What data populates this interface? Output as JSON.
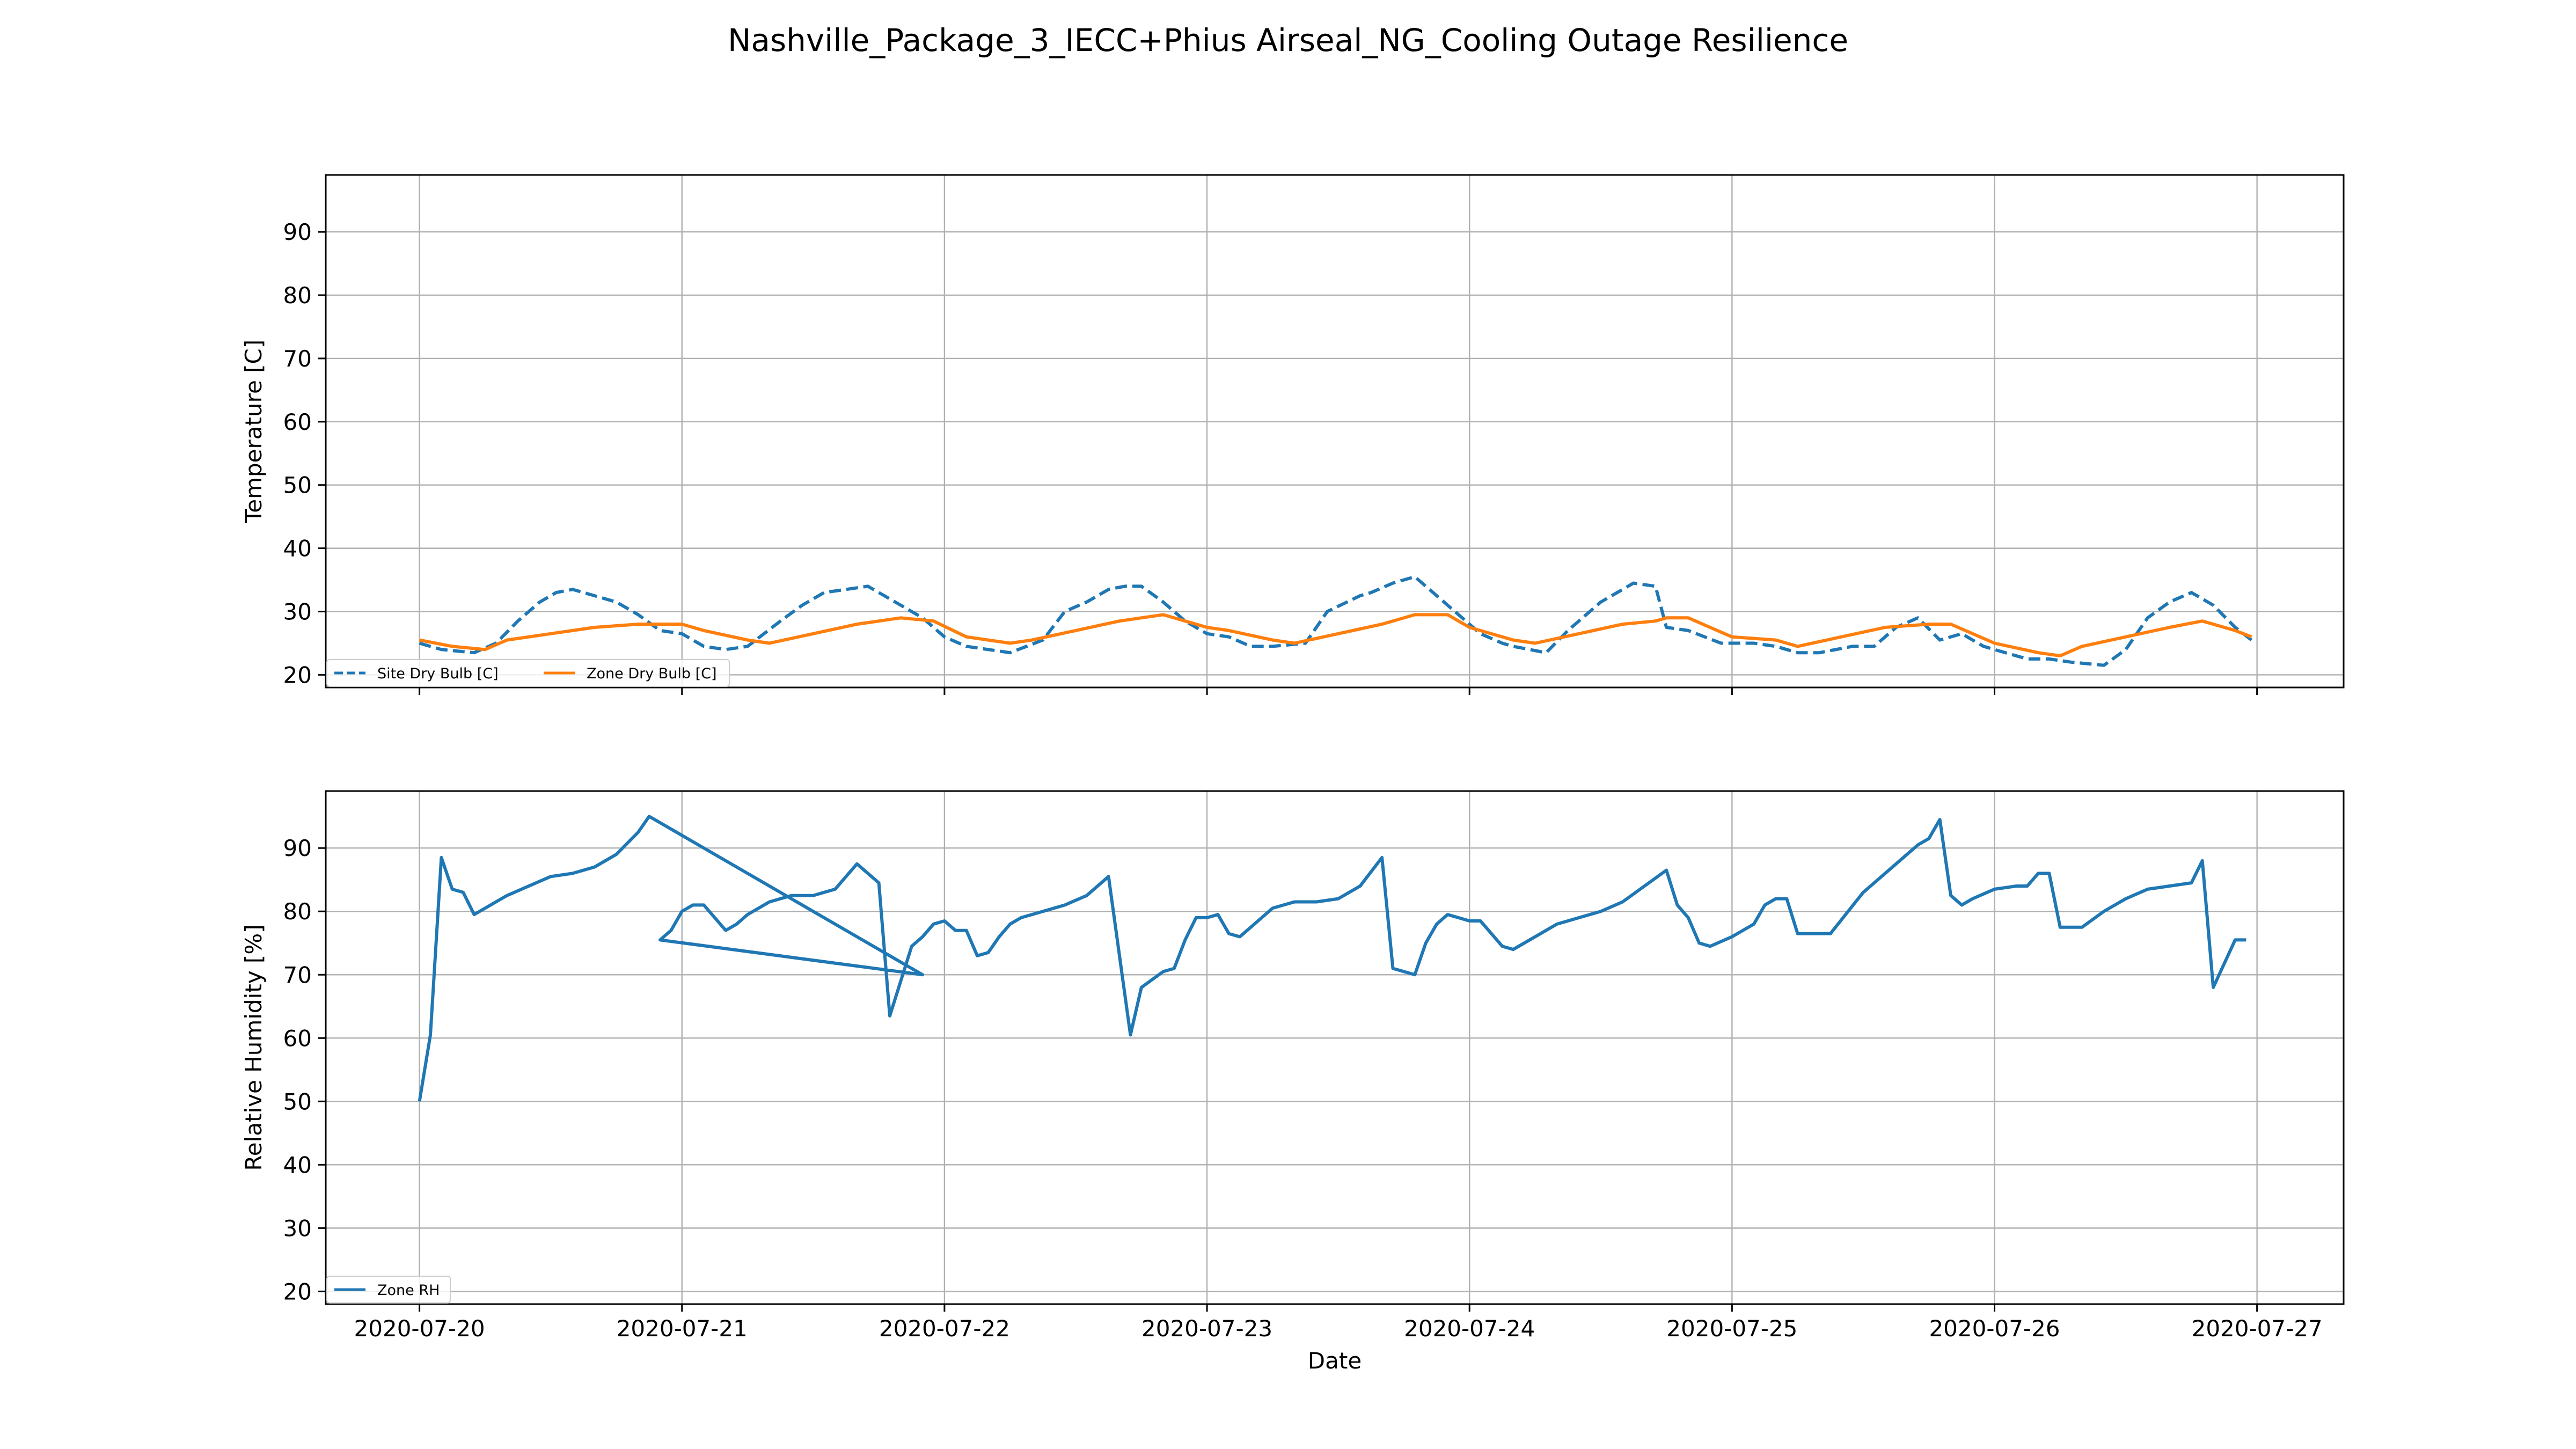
{
  "figure": {
    "title": "Nashville_Package_3_IECC+Phius Airseal_NG_Cooling Outage Resilience"
  },
  "chart_data": [
    {
      "type": "line",
      "ylabel": "Temperature [C]",
      "xlabel": "",
      "ylim": [
        18,
        99
      ],
      "yticks": [
        20,
        30,
        40,
        50,
        60,
        70,
        80,
        90
      ],
      "xlim": [
        "2020-07-19 15:26",
        "2020-07-27 07:55"
      ],
      "xticks": [
        "2020-07-20",
        "2020-07-21",
        "2020-07-22",
        "2020-07-23",
        "2020-07-24",
        "2020-07-25",
        "2020-07-26",
        "2020-07-27"
      ],
      "grid": true,
      "legend": {
        "position": "lower-left",
        "columns": 2
      },
      "series": [
        {
          "name": "Site Dry Bulb [C]",
          "color": "#1f77b4",
          "style": "dashed",
          "x": [
            "2020-07-20 00:00",
            "2020-07-20 02:00",
            "2020-07-20 05:00",
            "2020-07-20 07:00",
            "2020-07-20 09:00",
            "2020-07-20 11:00",
            "2020-07-20 12:30",
            "2020-07-20 14:00",
            "2020-07-20 16:00",
            "2020-07-20 18:00",
            "2020-07-20 20:00",
            "2020-07-20 22:00",
            "2020-07-21 00:00",
            "2020-07-21 02:00",
            "2020-07-21 04:00",
            "2020-07-21 06:00",
            "2020-07-21 09:00",
            "2020-07-21 11:00",
            "2020-07-21 13:00",
            "2020-07-21 15:00",
            "2020-07-21 17:00",
            "2020-07-21 20:00",
            "2020-07-21 22:00",
            "2020-07-22 00:00",
            "2020-07-22 02:00",
            "2020-07-22 04:00",
            "2020-07-22 06:00",
            "2020-07-22 09:00",
            "2020-07-22 11:00",
            "2020-07-22 13:00",
            "2020-07-22 15:00",
            "2020-07-22 16:30",
            "2020-07-22 18:00",
            "2020-07-22 20:00",
            "2020-07-22 22:00",
            "2020-07-23 00:00",
            "2020-07-23 02:00",
            "2020-07-23 04:00",
            "2020-07-23 06:00",
            "2020-07-23 09:00",
            "2020-07-23 11:00",
            "2020-07-23 14:00",
            "2020-07-23 15:00",
            "2020-07-23 17:00",
            "2020-07-23 19:00",
            "2020-07-23 21:00",
            "2020-07-23 23:00",
            "2020-07-24 01:00",
            "2020-07-24 03:00",
            "2020-07-24 04:00",
            "2020-07-24 07:00",
            "2020-07-24 09:00",
            "2020-07-24 12:00",
            "2020-07-24 14:00",
            "2020-07-24 15:00",
            "2020-07-24 17:00",
            "2020-07-24 18:00",
            "2020-07-24 20:00",
            "2020-07-24 23:00",
            "2020-07-25 02:00",
            "2020-07-25 04:00",
            "2020-07-25 06:00",
            "2020-07-25 08:00",
            "2020-07-25 11:00",
            "2020-07-25 13:00",
            "2020-07-25 15:00",
            "2020-07-25 17:00",
            "2020-07-25 19:00",
            "2020-07-25 21:00",
            "2020-07-25 23:00",
            "2020-07-26 01:00",
            "2020-07-26 03:00",
            "2020-07-26 05:00",
            "2020-07-26 07:00",
            "2020-07-26 10:00",
            "2020-07-26 12:00",
            "2020-07-26 14:00",
            "2020-07-26 16:00",
            "2020-07-26 18:00",
            "2020-07-26 20:00",
            "2020-07-26 22:00",
            "2020-07-26 23:30"
          ],
          "y": [
            25,
            24,
            23.5,
            25,
            28.5,
            31.5,
            33,
            33.5,
            32.5,
            31.5,
            29.5,
            27,
            26.5,
            24.5,
            24,
            24.5,
            28.5,
            31,
            33,
            33.5,
            34,
            31,
            29,
            26,
            24.5,
            24,
            23.5,
            25.5,
            30,
            31.5,
            33.5,
            34,
            34,
            31.5,
            28.5,
            26.5,
            26,
            24.5,
            24.5,
            25,
            30,
            32.5,
            33,
            34.5,
            35.5,
            32.5,
            29.5,
            26.5,
            25,
            24.5,
            23.5,
            27,
            31.5,
            33.5,
            34.5,
            34,
            27.5,
            27,
            25,
            25,
            24.5,
            23.5,
            23.5,
            24.5,
            24.5,
            27.5,
            29,
            25.5,
            26.5,
            24.5,
            23.5,
            22.5,
            22.5,
            22,
            21.5,
            24,
            29,
            31.5,
            33,
            31,
            27.5,
            25.5
          ]
        },
        {
          "name": "Zone Dry Bulb [C]",
          "color": "#ff7f0e",
          "style": "solid",
          "x": [
            "2020-07-20 00:00",
            "2020-07-20 03:00",
            "2020-07-20 06:00",
            "2020-07-20 08:00",
            "2020-07-20 12:00",
            "2020-07-20 16:00",
            "2020-07-20 20:00",
            "2020-07-21 00:00",
            "2020-07-21 02:00",
            "2020-07-21 06:00",
            "2020-07-21 08:00",
            "2020-07-21 12:00",
            "2020-07-21 16:00",
            "2020-07-21 20:00",
            "2020-07-21 23:00",
            "2020-07-22 02:00",
            "2020-07-22 06:00",
            "2020-07-22 08:00",
            "2020-07-22 12:00",
            "2020-07-22 16:00",
            "2020-07-22 20:00",
            "2020-07-23 00:00",
            "2020-07-23 02:00",
            "2020-07-23 06:00",
            "2020-07-23 08:00",
            "2020-07-23 12:00",
            "2020-07-23 16:00",
            "2020-07-23 19:00",
            "2020-07-23 22:00",
            "2020-07-24 00:00",
            "2020-07-24 04:00",
            "2020-07-24 06:00",
            "2020-07-24 10:00",
            "2020-07-24 14:00",
            "2020-07-24 17:00",
            "2020-07-24 18:00",
            "2020-07-24 20:00",
            "2020-07-25 00:00",
            "2020-07-25 04:00",
            "2020-07-25 06:00",
            "2020-07-25 10:00",
            "2020-07-25 14:00",
            "2020-07-25 18:00",
            "2020-07-25 20:00",
            "2020-07-26 00:00",
            "2020-07-26 04:00",
            "2020-07-26 06:00",
            "2020-07-26 08:00",
            "2020-07-26 12:00",
            "2020-07-26 16:00",
            "2020-07-26 19:00",
            "2020-07-26 22:00",
            "2020-07-26 23:30"
          ],
          "y": [
            25.5,
            24.5,
            24,
            25.5,
            26.5,
            27.5,
            28,
            28,
            27,
            25.5,
            25,
            26.5,
            28,
            29,
            28.5,
            26,
            25,
            25.5,
            27,
            28.5,
            29.5,
            27.5,
            27,
            25.5,
            25,
            26.5,
            28,
            29.5,
            29.5,
            27.5,
            25.5,
            25,
            26.5,
            28,
            28.5,
            29,
            29,
            26,
            25.5,
            24.5,
            26,
            27.5,
            28,
            28,
            25,
            23.5,
            23,
            24.5,
            26,
            27.5,
            28.5,
            27,
            26
          ]
        }
      ]
    },
    {
      "type": "line",
      "ylabel": "Relative Humidity [%]",
      "xlabel": "Date",
      "ylim": [
        18,
        99
      ],
      "yticks": [
        20,
        30,
        40,
        50,
        60,
        70,
        80,
        90
      ],
      "xlim": [
        "2020-07-19 15:26",
        "2020-07-27 07:55"
      ],
      "xticks": [
        "2020-07-20",
        "2020-07-21",
        "2020-07-22",
        "2020-07-23",
        "2020-07-24",
        "2020-07-25",
        "2020-07-26",
        "2020-07-27"
      ],
      "grid": true,
      "legend": {
        "position": "lower-left",
        "columns": 1
      },
      "series": [
        {
          "name": "Zone RH",
          "color": "#1f77b4",
          "style": "solid",
          "x": [
            "2020-07-20 00:00",
            "2020-07-20 01:00",
            "2020-07-20 02:00",
            "2020-07-20 03:00",
            "2020-07-20 04:00",
            "2020-07-20 05:00",
            "2020-07-20 06:00",
            "2020-07-20 08:00",
            "2020-07-20 10:00",
            "2020-07-20 12:00",
            "2020-07-20 14:00",
            "2020-07-20 16:00",
            "2020-07-20 18:00",
            "2020-07-20 20:00",
            "2020-07-20 21:00",
            "2020-07-21 22:00",
            "2020-07-20 22:00",
            "2020-07-20 23:00",
            "2020-07-21 00:00",
            "2020-07-21 01:00",
            "2020-07-21 02:00",
            "2020-07-21 04:00",
            "2020-07-21 05:00",
            "2020-07-21 06:00",
            "2020-07-21 08:00",
            "2020-07-21 10:00",
            "2020-07-21 12:00",
            "2020-07-21 14:00",
            "2020-07-21 16:00",
            "2020-07-21 18:00",
            "2020-07-21 19:00",
            "2020-07-21 21:00",
            "2020-07-21 22:00",
            "2020-07-21 23:00",
            "2020-07-22 00:00",
            "2020-07-22 01:00",
            "2020-07-22 02:00",
            "2020-07-22 03:00",
            "2020-07-22 04:00",
            "2020-07-22 05:00",
            "2020-07-22 06:00",
            "2020-07-22 07:00",
            "2020-07-22 09:00",
            "2020-07-22 11:00",
            "2020-07-22 13:00",
            "2020-07-22 15:00",
            "2020-07-22 17:00",
            "2020-07-22 18:00",
            "2020-07-22 20:00",
            "2020-07-22 21:00",
            "2020-07-22 22:00",
            "2020-07-22 23:00",
            "2020-07-23 00:00",
            "2020-07-23 01:00",
            "2020-07-23 02:00",
            "2020-07-23 03:00",
            "2020-07-23 04:00",
            "2020-07-23 05:00",
            "2020-07-23 06:00",
            "2020-07-23 08:00",
            "2020-07-23 10:00",
            "2020-07-23 12:00",
            "2020-07-23 14:00",
            "2020-07-23 16:00",
            "2020-07-23 17:00",
            "2020-07-23 19:00",
            "2020-07-23 20:00",
            "2020-07-23 21:00",
            "2020-07-23 22:00",
            "2020-07-23 23:00",
            "2020-07-24 00:00",
            "2020-07-24 01:00",
            "2020-07-24 03:00",
            "2020-07-24 04:00",
            "2020-07-24 06:00",
            "2020-07-24 08:00",
            "2020-07-24 10:00",
            "2020-07-24 12:00",
            "2020-07-24 14:00",
            "2020-07-24 16:00",
            "2020-07-24 18:00",
            "2020-07-24 19:00",
            "2020-07-24 20:00",
            "2020-07-24 21:00",
            "2020-07-24 22:00",
            "2020-07-25 00:00",
            "2020-07-25 01:00",
            "2020-07-25 02:00",
            "2020-07-25 03:00",
            "2020-07-25 04:00",
            "2020-07-25 05:00",
            "2020-07-25 06:00",
            "2020-07-25 09:00",
            "2020-07-25 12:00",
            "2020-07-25 15:00",
            "2020-07-25 17:00",
            "2020-07-25 18:00",
            "2020-07-25 19:00",
            "2020-07-25 20:00",
            "2020-07-25 21:00",
            "2020-07-25 22:00",
            "2020-07-26 00:00",
            "2020-07-26 02:00",
            "2020-07-26 03:00",
            "2020-07-26 04:00",
            "2020-07-26 05:00",
            "2020-07-26 06:00",
            "2020-07-26 08:00",
            "2020-07-26 10:00",
            "2020-07-26 12:00",
            "2020-07-26 14:00",
            "2020-07-26 16:00",
            "2020-07-26 18:00",
            "2020-07-26 19:00",
            "2020-07-26 20:00",
            "2020-07-26 22:00",
            "2020-07-26 23:00"
          ],
          "y": [
            50,
            60.5,
            88.5,
            83.5,
            83,
            79.5,
            80.5,
            82.5,
            84,
            85.5,
            86,
            87,
            89,
            92.5,
            95,
            70,
            75.5,
            77,
            80,
            81,
            81,
            77,
            78,
            79.5,
            81.5,
            82.5,
            82.5,
            83.5,
            87.5,
            84.5,
            63.5,
            74.5,
            76,
            78,
            78.5,
            77,
            77,
            73,
            73.5,
            76,
            78,
            79,
            80,
            81,
            82.5,
            85.5,
            60.5,
            68,
            70.5,
            71,
            75.5,
            79,
            79,
            79.5,
            76.5,
            76,
            77.5,
            79,
            80.5,
            81.5,
            81.5,
            82,
            84,
            88.5,
            71,
            70,
            75,
            78,
            79.5,
            79,
            78.5,
            78.5,
            74.5,
            74,
            76,
            78,
            79,
            80,
            81.5,
            84,
            86.5,
            81,
            79,
            75,
            74.5,
            76,
            77,
            78,
            81,
            82,
            82,
            76.5,
            76.5,
            83,
            87.5,
            90.5,
            91.5,
            94.5,
            82.5,
            81,
            82,
            83.5,
            84,
            84,
            86,
            86,
            77.5,
            77.5,
            80,
            82,
            83.5,
            84,
            84.5,
            88,
            68,
            75.5,
            75.5
          ]
        }
      ]
    }
  ]
}
